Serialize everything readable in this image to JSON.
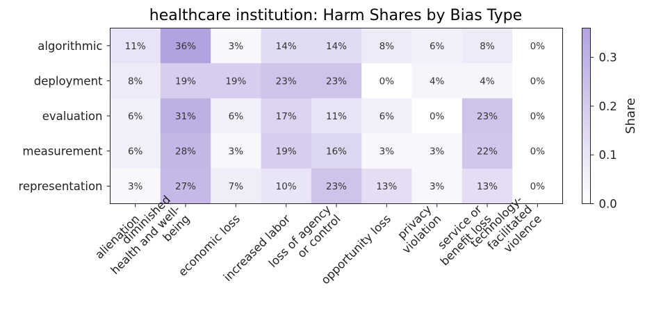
{
  "chart_data": {
    "type": "heatmap",
    "title": "healthcare institution: Harm Shares by Bias Type",
    "rows": [
      "algorithmic",
      "deployment",
      "evaluation",
      "measurement",
      "representation"
    ],
    "columns": [
      [
        "alienation"
      ],
      [
        "diminished",
        "health and well-",
        "being"
      ],
      [
        "economic loss"
      ],
      [
        "increased labor"
      ],
      [
        "loss of agency",
        "or control"
      ],
      [
        "opportunity loss"
      ],
      [
        "privacy",
        "violation"
      ],
      [
        "service or",
        "benefit loss"
      ],
      [
        "technology-",
        "facilitated",
        "violence"
      ]
    ],
    "values": [
      [
        0.11,
        0.36,
        0.03,
        0.14,
        0.14,
        0.08,
        0.06,
        0.08,
        0.0
      ],
      [
        0.08,
        0.19,
        0.19,
        0.23,
        0.23,
        0.0,
        0.04,
        0.04,
        0.0
      ],
      [
        0.06,
        0.31,
        0.06,
        0.17,
        0.11,
        0.06,
        0.0,
        0.23,
        0.0
      ],
      [
        0.06,
        0.28,
        0.03,
        0.19,
        0.16,
        0.03,
        0.03,
        0.22,
        0.0
      ],
      [
        0.03,
        0.27,
        0.07,
        0.1,
        0.23,
        0.13,
        0.03,
        0.13,
        0.0
      ]
    ],
    "labels": [
      [
        "11%",
        "36%",
        "3%",
        "14%",
        "14%",
        "8%",
        "6%",
        "8%",
        "0%"
      ],
      [
        "8%",
        "19%",
        "19%",
        "23%",
        "23%",
        "0%",
        "4%",
        "4%",
        "0%"
      ],
      [
        "6%",
        "31%",
        "6%",
        "17%",
        "11%",
        "6%",
        "0%",
        "23%",
        "0%"
      ],
      [
        "6%",
        "28%",
        "3%",
        "19%",
        "16%",
        "3%",
        "3%",
        "22%",
        "0%"
      ],
      [
        "3%",
        "27%",
        "7%",
        "10%",
        "23%",
        "13%",
        "3%",
        "13%",
        "0%"
      ]
    ],
    "colorbar": {
      "label": "Share",
      "range": [
        0,
        0.36
      ],
      "ticks": [
        0.0,
        0.1,
        0.2,
        0.3
      ],
      "tick_labels": [
        "0.0",
        "0.1",
        "0.2",
        "0.3"
      ],
      "color_low": "#ffffff",
      "color_high": "#b3a2e0"
    }
  }
}
